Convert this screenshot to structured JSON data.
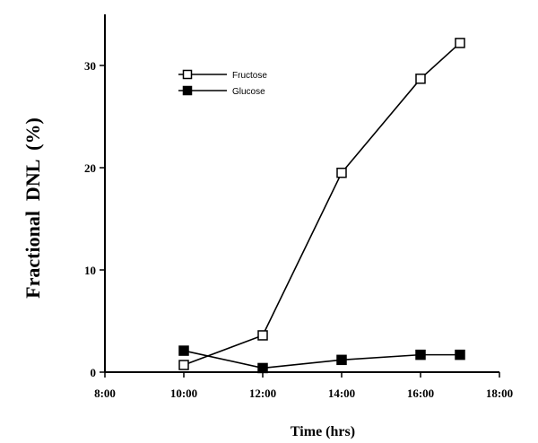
{
  "chart_data": {
    "type": "line",
    "title": "",
    "xlabel": "Time (hrs)",
    "ylabel": "Fractional  DNL  (%)",
    "x_ticks": [
      "8:00",
      "10:00",
      "12:00",
      "14:00",
      "16:00",
      "18:00"
    ],
    "x_tick_values": [
      8,
      10,
      12,
      14,
      16,
      18
    ],
    "y_ticks": [
      "0",
      "10",
      "20",
      "30"
    ],
    "y_tick_values": [
      0,
      10,
      20,
      30
    ],
    "xlim": [
      8,
      18
    ],
    "ylim": [
      0,
      35
    ],
    "grid": false,
    "legend_placement": "top-left",
    "series": [
      {
        "name": "Fructose",
        "marker": "open-square",
        "x": [
          "10:00",
          "12:00",
          "14:00",
          "16:00",
          "17:00"
        ],
        "y": [
          0.7,
          3.6,
          19.5,
          28.7,
          32.2
        ]
      },
      {
        "name": "Glucose",
        "marker": "filled-square",
        "x": [
          "10:00",
          "12:00",
          "14:00",
          "16:00",
          "17:00"
        ],
        "y": [
          2.1,
          0.4,
          1.2,
          1.7,
          1.7
        ]
      }
    ]
  }
}
